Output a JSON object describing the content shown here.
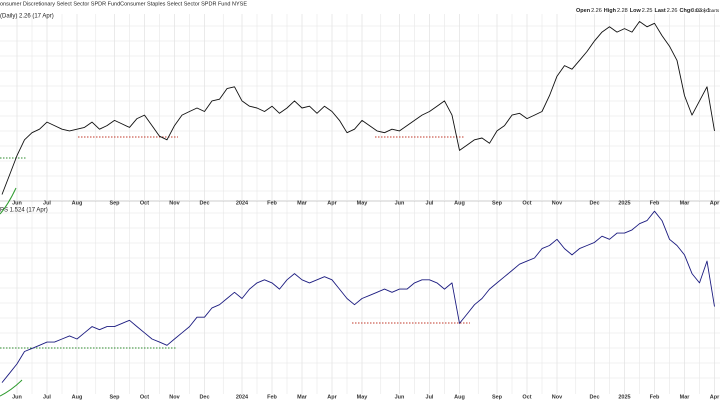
{
  "header": {
    "title": "onsumer Discretionary Select Sector SPDR FundConsumer Staples Select Sector SPDR Fund NYSE",
    "source": "© StockCharts",
    "quote": [
      {
        "label": "Open",
        "value": "2.26"
      },
      {
        "label": "High",
        "value": "2.28"
      },
      {
        "label": "Low",
        "value": "2.25"
      },
      {
        "label": "Last",
        "value": "2.26"
      },
      {
        "label": "Chg",
        "value": "0.03 (-1."
      }
    ]
  },
  "chart_data": [
    {
      "type": "line",
      "label": "(Daily) 2.26 (17 Apr)",
      "color": "#111111",
      "ylim": [
        1.88,
        2.9
      ],
      "categories": [
        null,
        null,
        "Jun",
        null,
        null,
        null,
        "Jul",
        null,
        null,
        null,
        "Aug",
        null,
        null,
        null,
        null,
        "Sep",
        null,
        null,
        null,
        "Oct",
        null,
        null,
        null,
        "Nov",
        null,
        null,
        null,
        "Dec",
        null,
        null,
        null,
        null,
        "2024",
        null,
        null,
        null,
        "Feb",
        null,
        null,
        null,
        "Mar",
        null,
        null,
        null,
        "Apr",
        null,
        null,
        null,
        "May",
        null,
        null,
        null,
        null,
        "Jun",
        null,
        null,
        null,
        "Jul",
        null,
        null,
        null,
        "Aug",
        null,
        null,
        null,
        null,
        "Sep",
        null,
        null,
        null,
        "Oct",
        null,
        null,
        null,
        "Nov",
        null,
        null,
        null,
        null,
        "Dec",
        null,
        null,
        null,
        "2025",
        null,
        null,
        null,
        "Feb",
        null,
        null,
        null,
        "Mar",
        null,
        null,
        null,
        "Apr"
      ],
      "values": [
        1.9,
        2.01,
        2.12,
        2.21,
        2.25,
        2.27,
        2.31,
        2.29,
        2.27,
        2.26,
        2.27,
        2.28,
        2.31,
        2.27,
        2.29,
        2.32,
        2.3,
        2.28,
        2.33,
        2.35,
        2.29,
        2.23,
        2.21,
        2.29,
        2.35,
        2.37,
        2.39,
        2.37,
        2.43,
        2.44,
        2.5,
        2.51,
        2.43,
        2.4,
        2.39,
        2.37,
        2.4,
        2.36,
        2.39,
        2.43,
        2.39,
        2.4,
        2.36,
        2.4,
        2.37,
        2.32,
        2.25,
        2.27,
        2.32,
        2.29,
        2.26,
        2.25,
        2.27,
        2.26,
        2.29,
        2.32,
        2.35,
        2.37,
        2.4,
        2.43,
        2.35,
        2.15,
        2.18,
        2.21,
        2.22,
        2.19,
        2.26,
        2.29,
        2.35,
        2.36,
        2.33,
        2.35,
        2.37,
        2.46,
        2.57,
        2.63,
        2.61,
        2.66,
        2.71,
        2.77,
        2.82,
        2.85,
        2.82,
        2.84,
        2.82,
        2.88,
        2.85,
        2.87,
        2.8,
        2.74,
        2.66,
        2.46,
        2.35,
        2.43,
        2.51,
        2.26
      ]
    },
    {
      "type": "line",
      "label": "PS 1.524 (17 Apr)",
      "color": "#1c1c80",
      "ylim": [
        1.25,
        1.85
      ],
      "categories": [
        null,
        null,
        "Jun",
        null,
        null,
        null,
        "Jul",
        null,
        null,
        null,
        "Aug",
        null,
        null,
        null,
        null,
        "Sep",
        null,
        null,
        null,
        "Oct",
        null,
        null,
        null,
        "Nov",
        null,
        null,
        null,
        "Dec",
        null,
        null,
        null,
        null,
        "2024",
        null,
        null,
        null,
        "Feb",
        null,
        null,
        null,
        "Mar",
        null,
        null,
        null,
        "Apr",
        null,
        null,
        null,
        "May",
        null,
        null,
        null,
        null,
        "Jun",
        null,
        null,
        null,
        "Jul",
        null,
        null,
        null,
        "Aug",
        null,
        null,
        null,
        null,
        "Sep",
        null,
        null,
        null,
        "Oct",
        null,
        null,
        null,
        "Nov",
        null,
        null,
        null,
        null,
        "Dec",
        null,
        null,
        null,
        "2025",
        null,
        null,
        null,
        "Feb",
        null,
        null,
        null,
        "Mar",
        null,
        null,
        null,
        "Apr"
      ],
      "values": [
        1.28,
        1.31,
        1.34,
        1.38,
        1.39,
        1.4,
        1.41,
        1.41,
        1.42,
        1.43,
        1.42,
        1.44,
        1.46,
        1.45,
        1.46,
        1.46,
        1.47,
        1.48,
        1.46,
        1.44,
        1.42,
        1.41,
        1.4,
        1.42,
        1.44,
        1.46,
        1.49,
        1.49,
        1.52,
        1.53,
        1.55,
        1.57,
        1.55,
        1.58,
        1.6,
        1.61,
        1.6,
        1.58,
        1.61,
        1.63,
        1.61,
        1.6,
        1.61,
        1.62,
        1.61,
        1.58,
        1.55,
        1.53,
        1.55,
        1.56,
        1.57,
        1.58,
        1.57,
        1.58,
        1.58,
        1.6,
        1.61,
        1.61,
        1.6,
        1.58,
        1.6,
        1.47,
        1.5,
        1.53,
        1.55,
        1.58,
        1.6,
        1.62,
        1.64,
        1.66,
        1.67,
        1.68,
        1.71,
        1.72,
        1.74,
        1.71,
        1.69,
        1.71,
        1.72,
        1.73,
        1.75,
        1.74,
        1.76,
        1.76,
        1.77,
        1.79,
        1.8,
        1.83,
        1.8,
        1.74,
        1.72,
        1.69,
        1.63,
        1.6,
        1.67,
        1.524
      ]
    }
  ]
}
